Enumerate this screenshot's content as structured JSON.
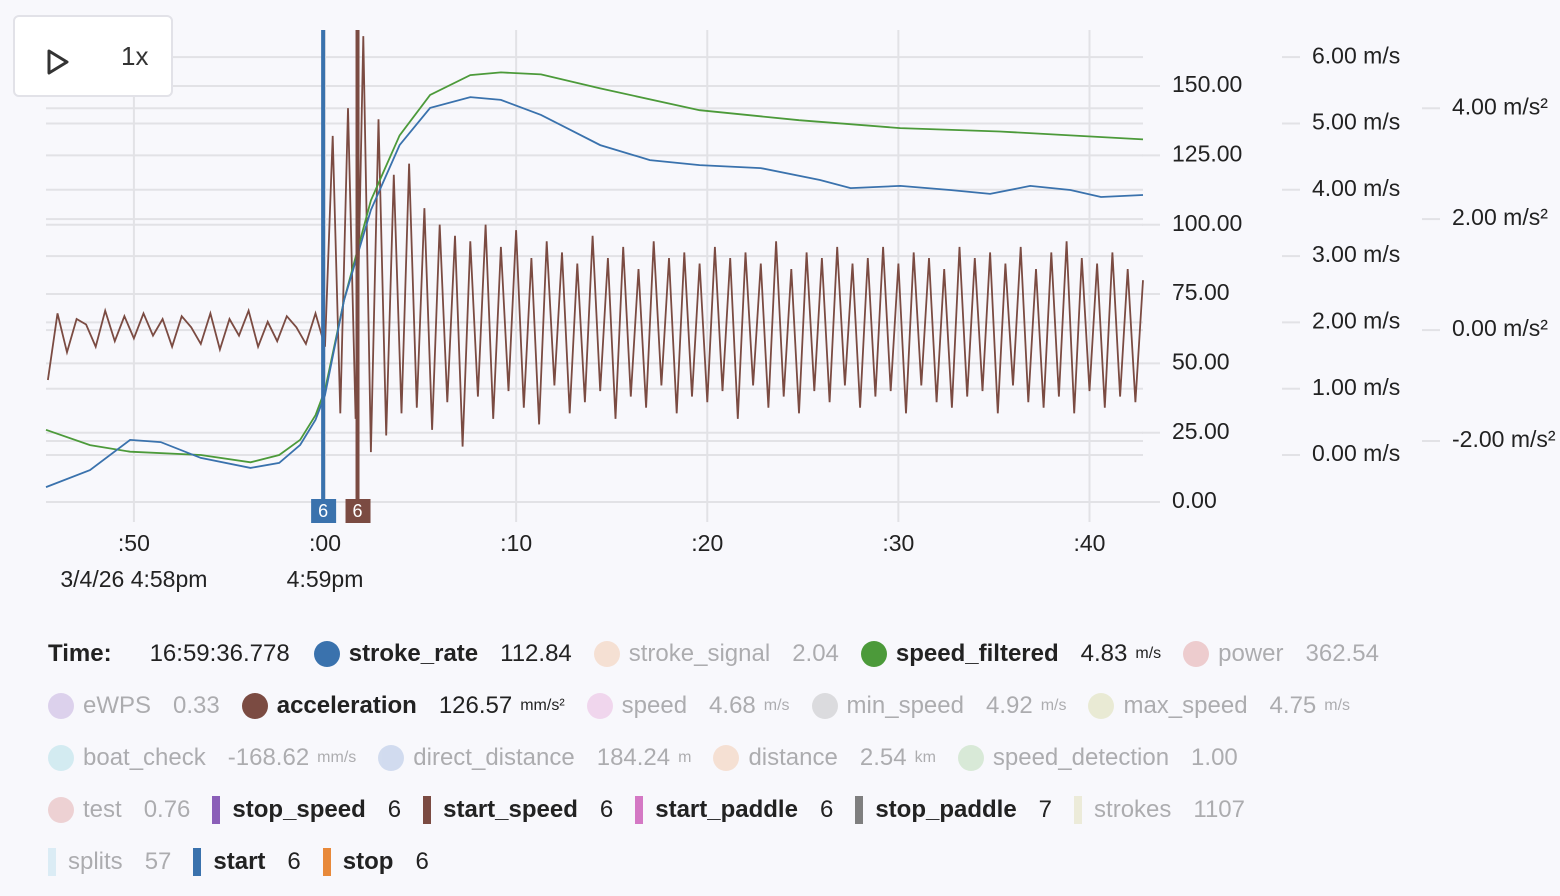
{
  "controls": {
    "speed": "1x"
  },
  "chart_data": {
    "type": "line",
    "xlim": [
      45.4,
      102.8
    ],
    "xticks": [
      {
        "value": 50,
        "label": ":50"
      },
      {
        "value": 60,
        "label": ":00"
      },
      {
        "value": 70,
        "label": ":10"
      },
      {
        "value": 80,
        "label": ":20"
      },
      {
        "value": 90,
        "label": ":30"
      },
      {
        "value": 100,
        "label": ":40"
      }
    ],
    "xdates": [
      {
        "value": 50,
        "label": "3/4/26 4:58pm"
      },
      {
        "value": 60,
        "label": "4:59pm"
      }
    ],
    "ylim": [
      -7.2,
      170.2
    ],
    "yticks": [
      {
        "value": 0,
        "label": "0.00"
      },
      {
        "value": 25,
        "label": "25.00"
      },
      {
        "value": 50,
        "label": "50.00"
      },
      {
        "value": 75,
        "label": "75.00"
      },
      {
        "value": 100,
        "label": "100.00"
      },
      {
        "value": 125,
        "label": "125.00"
      },
      {
        "value": 150,
        "label": "150.00"
      }
    ],
    "y2lim": [
      -1.01,
      6.41
    ],
    "y2ticks": [
      {
        "value": 0,
        "label": "0.00 m/s"
      },
      {
        "value": 1,
        "label": "1.00 m/s"
      },
      {
        "value": 2,
        "label": "2.00 m/s"
      },
      {
        "value": 3,
        "label": "3.00 m/s"
      },
      {
        "value": 4,
        "label": "4.00 m/s"
      },
      {
        "value": 5,
        "label": "5.00 m/s"
      },
      {
        "value": 6,
        "label": "6.00 m/s"
      }
    ],
    "y3lim": [
      -3.46,
      5.41
    ],
    "y3ticks": [
      {
        "value": -2,
        "label": "-2.00 m/s²"
      },
      {
        "value": 0,
        "label": "0.00 m/s²"
      },
      {
        "value": 2,
        "label": "2.00 m/s²"
      },
      {
        "value": 4,
        "label": "4.00 m/s²"
      }
    ],
    "grid": true,
    "series": [
      {
        "color": "#7b4b42",
        "axis": "y3",
        "x": [
          45.5,
          46,
          46.5,
          47,
          47.5,
          48,
          48.5,
          49,
          49.5,
          50,
          50.5,
          51,
          51.5,
          52,
          52.5,
          53,
          53.5,
          54,
          54.5,
          55,
          55.5,
          56,
          56.5,
          57,
          57.5,
          58,
          58.5,
          59,
          59.5,
          60.0,
          60.4,
          60.8,
          61.2,
          61.6,
          62.0,
          62.4,
          62.8,
          63.2,
          63.6,
          64.0,
          64.4,
          64.8,
          65.2,
          65.6,
          66.0,
          66.4,
          66.8,
          67.2,
          67.6,
          68.0,
          68.4,
          68.8,
          69.2,
          69.6,
          70.0,
          70.4,
          70.8,
          71.2,
          71.6,
          72.0,
          72.4,
          72.8,
          73.2,
          73.6,
          74.0,
          74.4,
          74.8,
          75.2,
          75.6,
          76.0,
          76.4,
          76.8,
          77.2,
          77.6,
          78.0,
          78.4,
          78.8,
          79.2,
          79.6,
          80.0,
          80.4,
          80.8,
          81.2,
          81.6,
          82.0,
          82.4,
          82.8,
          83.2,
          83.6,
          84.0,
          84.4,
          84.8,
          85.2,
          85.6,
          86.0,
          86.4,
          86.8,
          87.2,
          87.6,
          88.0,
          88.4,
          88.8,
          89.2,
          89.6,
          90.0,
          90.4,
          90.8,
          91.2,
          91.6,
          92.0,
          92.4,
          92.8,
          93.2,
          93.6,
          94.0,
          94.4,
          94.8,
          95.2,
          95.6,
          96.0,
          96.4,
          96.8,
          97.2,
          97.6,
          98.0,
          98.4,
          98.8,
          99.2,
          99.6,
          100.0,
          100.4,
          100.8,
          101.2,
          101.6,
          102.0,
          102.4,
          102.8
        ],
        "values": [
          -0.9,
          0.3,
          -0.4,
          0.2,
          0.1,
          -0.3,
          0.35,
          -0.2,
          0.25,
          -0.15,
          0.3,
          -0.1,
          0.2,
          -0.3,
          0.25,
          0.05,
          -0.25,
          0.3,
          -0.35,
          0.2,
          -0.1,
          0.35,
          -0.3,
          0.15,
          -0.2,
          0.25,
          0.05,
          -0.25,
          0.3,
          -0.3,
          3.5,
          -1.5,
          4.0,
          -1.6,
          5.3,
          -2.2,
          3.8,
          -1.9,
          2.8,
          -1.5,
          3.0,
          -1.4,
          2.2,
          -1.8,
          1.9,
          -1.3,
          1.7,
          -2.1,
          1.6,
          -1.2,
          1.9,
          -1.6,
          1.5,
          -1.1,
          1.8,
          -1.4,
          1.3,
          -1.7,
          1.6,
          -1.0,
          1.4,
          -1.5,
          1.2,
          -1.3,
          1.7,
          -1.1,
          1.3,
          -1.6,
          1.5,
          -1.2,
          1.1,
          -1.4,
          1.6,
          -1.0,
          1.3,
          -1.5,
          1.4,
          -1.2,
          1.2,
          -1.3,
          1.5,
          -1.1,
          1.3,
          -1.6,
          1.4,
          -1.0,
          1.2,
          -1.4,
          1.6,
          -1.2,
          1.1,
          -1.5,
          1.4,
          -1.1,
          1.3,
          -1.3,
          1.5,
          -1.0,
          1.2,
          -1.4,
          1.3,
          -1.2,
          1.5,
          -1.1,
          1.2,
          -1.5,
          1.4,
          -1.0,
          1.3,
          -1.3,
          1.1,
          -1.4,
          1.5,
          -1.2,
          1.3,
          -1.1,
          1.4,
          -1.5,
          1.2,
          -1.0,
          1.5,
          -1.3,
          1.1,
          -1.4,
          1.4,
          -1.2,
          1.6,
          -1.5,
          1.3,
          -1.1,
          1.2,
          -1.4,
          1.4,
          -1.2,
          1.1,
          -1.3,
          0.9
        ]
      },
      {
        "color": "#4c9a3a",
        "axis": "y2",
        "x": [
          45.4,
          47.7,
          49.8,
          53.5,
          56.1,
          57.6,
          58.7,
          59.5,
          60.0,
          61.0,
          62.4,
          63.9,
          65.5,
          67.6,
          69.2,
          71.3,
          74.4,
          79.6,
          84.8,
          90.1,
          95.3,
          102.8
        ],
        "values": [
          0.38,
          0.15,
          0.05,
          0,
          -0.11,
          0,
          0.23,
          0.6,
          0.98,
          2.34,
          3.84,
          4.82,
          5.43,
          5.73,
          5.77,
          5.74,
          5.53,
          5.2,
          5.05,
          4.93,
          4.88,
          4.76
        ]
      },
      {
        "color": "#3a72ad",
        "axis": "y",
        "x": [
          45.4,
          47.7,
          49.8,
          51.4,
          53.5,
          56.1,
          57.6,
          58.7,
          59.5,
          60.0,
          61.0,
          62.4,
          63.9,
          65.5,
          67.6,
          69.2,
          71.3,
          74.4,
          77.0,
          79.6,
          82.8,
          85.9,
          87.5,
          90.1,
          92.7,
          94.8,
          96.9,
          99.0,
          100.6,
          102.8
        ],
        "values": [
          5.4,
          11.5,
          22.4,
          21.6,
          15.9,
          12.3,
          14.1,
          20.6,
          29.6,
          38.6,
          72.8,
          105.3,
          128.7,
          142.1,
          146,
          145,
          139.6,
          128.7,
          123.3,
          121.5,
          120.4,
          116.1,
          113.2,
          114,
          112.5,
          111.1,
          114,
          112.5,
          110,
          110.7
        ]
      }
    ],
    "markers": [
      {
        "x": 59.9,
        "label": "6",
        "color": "#3a72ad"
      },
      {
        "x": 61.7,
        "label": "6",
        "color": "#7b4b42"
      }
    ]
  },
  "readout": {
    "time_label": "Time:",
    "time": "16:59:36.778",
    "items": [
      {
        "name": "stroke_rate",
        "value": "112.84",
        "color": "#3a72ad",
        "marker": "dot",
        "active": true
      },
      {
        "name": "stroke_signal",
        "value": "2.04",
        "color": "#f2b48a",
        "marker": "dot",
        "active": false
      },
      {
        "name": "speed_filtered",
        "value": "4.83",
        "unit": "m/s",
        "color": "#4c9a3a",
        "marker": "dot",
        "active": true
      },
      {
        "name": "power",
        "value": "362.54",
        "color": "#d97b7b",
        "marker": "dot",
        "active": false
      },
      {
        "name": "eWPS",
        "value": "0.33",
        "color": "#a98bd0",
        "marker": "dot",
        "active": false
      },
      {
        "name": "acceleration",
        "value": "126.57",
        "unit": "mm/s²",
        "color": "#7b4b42",
        "marker": "dot",
        "active": true
      },
      {
        "name": "speed",
        "value": "4.68",
        "unit": "m/s",
        "color": "#e49ad2",
        "marker": "dot",
        "active": false
      },
      {
        "name": "min_speed",
        "value": "4.92",
        "unit": "m/s",
        "color": "#a8a8a8",
        "marker": "dot",
        "active": false
      },
      {
        "name": "max_speed",
        "value": "4.75",
        "unit": "m/s",
        "color": "#cfd28c",
        "marker": "dot",
        "active": false
      },
      {
        "name": "boat_check",
        "value": "-168.62",
        "unit": "mm/s",
        "color": "#8fd4df",
        "marker": "dot",
        "active": false
      },
      {
        "name": "direct_distance",
        "value": "184.24",
        "unit": "m",
        "color": "#8ba8d8",
        "marker": "dot",
        "active": false
      },
      {
        "name": "distance",
        "value": "2.54",
        "unit": "km",
        "color": "#f2b48a",
        "marker": "dot",
        "active": false
      },
      {
        "name": "speed_detection",
        "value": "1.00",
        "color": "#9fce94",
        "marker": "dot",
        "active": false
      },
      {
        "name": "test",
        "value": "0.76",
        "color": "#d98a8a",
        "marker": "dot",
        "active": false
      },
      {
        "name": "stop_speed",
        "value": "6",
        "color": "#8b5fb8",
        "marker": "bar",
        "active": true
      },
      {
        "name": "start_speed",
        "value": "6",
        "color": "#7b4b42",
        "marker": "bar",
        "active": true
      },
      {
        "name": "start_paddle",
        "value": "6",
        "color": "#d478c4",
        "marker": "bar",
        "active": true
      },
      {
        "name": "stop_paddle",
        "value": "7",
        "color": "#7f7f7f",
        "marker": "bar",
        "active": true
      },
      {
        "name": "strokes",
        "value": "1107",
        "color": "#d8d49a",
        "marker": "bar",
        "active": false
      },
      {
        "name": "splits",
        "value": "57",
        "color": "#a6d8ea",
        "marker": "bar",
        "active": false
      },
      {
        "name": "start",
        "value": "6",
        "color": "#3a72ad",
        "marker": "bar",
        "active": true
      },
      {
        "name": "stop",
        "value": "6",
        "color": "#e8893a",
        "marker": "bar",
        "active": true
      }
    ]
  }
}
